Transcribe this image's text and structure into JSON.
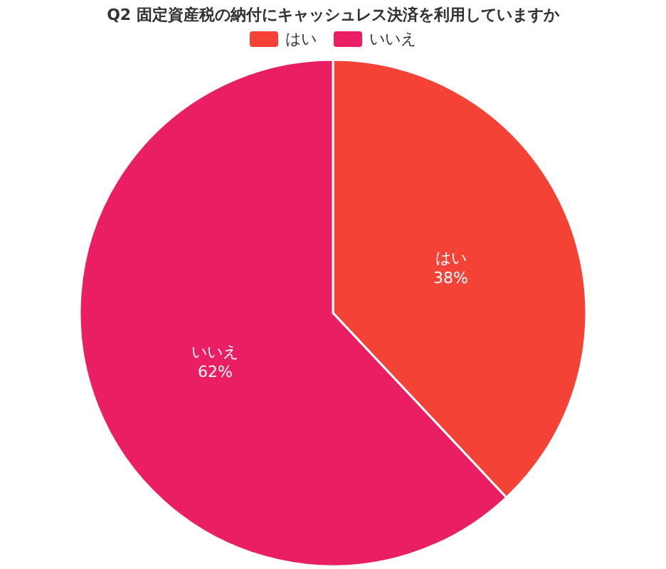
{
  "chart_data": {
    "type": "pie",
    "title": "Q2 固定資産税の納付にキャッシュレス決済を利用していますか",
    "categories": [
      "はい",
      "いいえ"
    ],
    "values": [
      38,
      62
    ],
    "colors": [
      "#f44336",
      "#e91e63"
    ],
    "value_labels": [
      "38%",
      "62%"
    ],
    "legend": "top"
  }
}
